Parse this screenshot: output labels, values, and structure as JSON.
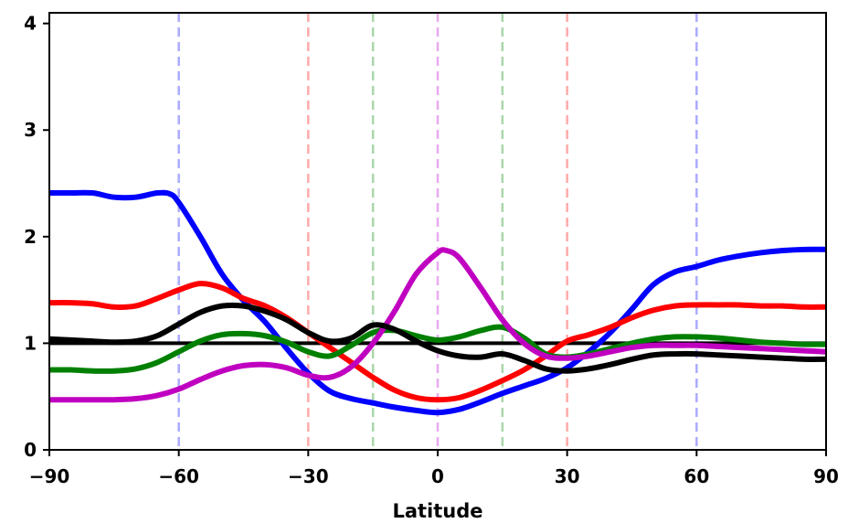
{
  "chart_data": {
    "type": "line",
    "title": "",
    "xlabel": "Latitude",
    "ylabel": "",
    "xlim": [
      -90,
      90
    ],
    "ylim": [
      0,
      4.1
    ],
    "xticks": [
      -90,
      -60,
      -30,
      0,
      30,
      60,
      90
    ],
    "xtick_labels": [
      "−90",
      "−60",
      "−30",
      "0",
      "30",
      "60",
      "90"
    ],
    "yticks": [
      0,
      1,
      2,
      3,
      4
    ],
    "ytick_labels": [
      "0",
      "1",
      "2",
      "3",
      "4"
    ],
    "grid": false,
    "reference_lines": [
      {
        "x": -60,
        "color": "#aaaaff",
        "style": "dashed"
      },
      {
        "x": 60,
        "color": "#aaaaff",
        "style": "dashed"
      },
      {
        "x": -30,
        "color": "#ffaaaa",
        "style": "dashed"
      },
      {
        "x": 30,
        "color": "#ffaaaa",
        "style": "dashed"
      },
      {
        "x": -15,
        "color": "#aad6aa",
        "style": "dashed"
      },
      {
        "x": 15,
        "color": "#aad6aa",
        "style": "dashed"
      },
      {
        "x": 0,
        "color": "#e8aaf0",
        "style": "dashed"
      },
      {
        "y": 1,
        "color": "#000000",
        "style": "solid"
      }
    ],
    "series": [
      {
        "color": "#0000ff",
        "x": [
          -90,
          -85,
          -80,
          -75,
          -70,
          -65,
          -62,
          -60,
          -55,
          -50,
          -45,
          -40,
          -35,
          -30,
          -25,
          -20,
          -15,
          -10,
          -5,
          0,
          5,
          10,
          15,
          20,
          25,
          30,
          35,
          40,
          45,
          50,
          55,
          60,
          65,
          70,
          75,
          80,
          85,
          90
        ],
        "y": [
          2.41,
          2.41,
          2.41,
          2.37,
          2.37,
          2.41,
          2.4,
          2.32,
          2.0,
          1.65,
          1.4,
          1.2,
          0.95,
          0.72,
          0.55,
          0.48,
          0.44,
          0.4,
          0.37,
          0.35,
          0.38,
          0.45,
          0.53,
          0.6,
          0.67,
          0.77,
          0.92,
          1.1,
          1.32,
          1.55,
          1.67,
          1.72,
          1.78,
          1.82,
          1.85,
          1.87,
          1.88,
          1.88
        ]
      },
      {
        "color": "#ff0000",
        "x": [
          -90,
          -85,
          -80,
          -75,
          -70,
          -65,
          -60,
          -55,
          -50,
          -45,
          -40,
          -35,
          -30,
          -25,
          -20,
          -15,
          -10,
          -5,
          0,
          5,
          10,
          15,
          20,
          25,
          30,
          35,
          40,
          45,
          50,
          55,
          60,
          65,
          70,
          75,
          80,
          85,
          90
        ],
        "y": [
          1.38,
          1.38,
          1.37,
          1.34,
          1.35,
          1.42,
          1.5,
          1.56,
          1.52,
          1.42,
          1.35,
          1.24,
          1.1,
          0.96,
          0.82,
          0.68,
          0.56,
          0.49,
          0.47,
          0.49,
          0.56,
          0.65,
          0.75,
          0.88,
          1.02,
          1.08,
          1.15,
          1.24,
          1.31,
          1.35,
          1.36,
          1.36,
          1.36,
          1.35,
          1.35,
          1.34,
          1.34
        ]
      },
      {
        "color": "#008000",
        "x": [
          -90,
          -85,
          -80,
          -75,
          -70,
          -65,
          -60,
          -55,
          -50,
          -45,
          -40,
          -35,
          -30,
          -25,
          -20,
          -15,
          -10,
          -5,
          0,
          5,
          10,
          15,
          20,
          25,
          30,
          35,
          40,
          45,
          50,
          55,
          60,
          65,
          70,
          75,
          80,
          85,
          90
        ],
        "y": [
          0.75,
          0.75,
          0.74,
          0.74,
          0.76,
          0.82,
          0.92,
          1.02,
          1.08,
          1.09,
          1.07,
          1.01,
          0.92,
          0.88,
          0.98,
          1.1,
          1.12,
          1.07,
          1.03,
          1.06,
          1.12,
          1.15,
          1.05,
          0.9,
          0.87,
          0.9,
          0.95,
          1.0,
          1.04,
          1.06,
          1.06,
          1.05,
          1.03,
          1.01,
          1.0,
          0.99,
          0.99
        ]
      },
      {
        "color": "#c000c0",
        "x": [
          -90,
          -85,
          -80,
          -75,
          -70,
          -65,
          -60,
          -55,
          -50,
          -45,
          -40,
          -35,
          -30,
          -25,
          -20,
          -15,
          -10,
          -5,
          0,
          2,
          5,
          10,
          15,
          20,
          25,
          30,
          35,
          40,
          45,
          50,
          55,
          60,
          65,
          70,
          75,
          80,
          85,
          90
        ],
        "y": [
          0.47,
          0.47,
          0.47,
          0.47,
          0.48,
          0.51,
          0.57,
          0.66,
          0.74,
          0.79,
          0.8,
          0.77,
          0.7,
          0.68,
          0.78,
          1.0,
          1.3,
          1.65,
          1.85,
          1.87,
          1.8,
          1.52,
          1.22,
          1.0,
          0.88,
          0.86,
          0.88,
          0.92,
          0.96,
          0.98,
          0.98,
          0.98,
          0.97,
          0.96,
          0.95,
          0.94,
          0.93,
          0.92
        ]
      },
      {
        "color": "#000000",
        "x": [
          -90,
          -85,
          -80,
          -75,
          -70,
          -65,
          -60,
          -55,
          -50,
          -45,
          -40,
          -35,
          -30,
          -25,
          -20,
          -15,
          -10,
          -5,
          0,
          5,
          10,
          15,
          20,
          25,
          30,
          35,
          40,
          45,
          50,
          55,
          60,
          65,
          70,
          75,
          80,
          85,
          90
        ],
        "y": [
          1.04,
          1.03,
          1.02,
          1.01,
          1.02,
          1.07,
          1.18,
          1.29,
          1.35,
          1.35,
          1.3,
          1.22,
          1.1,
          1.02,
          1.05,
          1.17,
          1.13,
          1.02,
          0.93,
          0.88,
          0.87,
          0.9,
          0.84,
          0.76,
          0.74,
          0.76,
          0.8,
          0.85,
          0.89,
          0.9,
          0.9,
          0.89,
          0.88,
          0.87,
          0.86,
          0.85,
          0.85
        ]
      }
    ]
  }
}
